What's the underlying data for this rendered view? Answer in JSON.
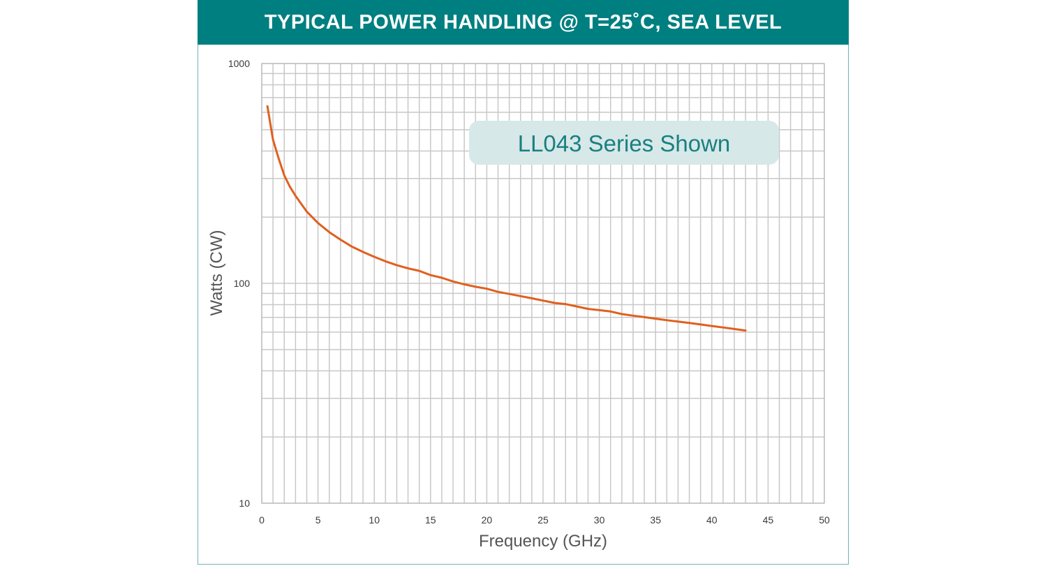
{
  "header": {
    "title": "TYPICAL POWER HANDLING @ T=25˚C, SEA LEVEL"
  },
  "colors": {
    "header_bg": "#007f80",
    "line": "#e0601f",
    "grid": "#c8c8c8",
    "annotation_bg": "#d6e8e8",
    "annotation_text": "#1a7f80"
  },
  "chart_data": {
    "type": "line",
    "title": "TYPICAL POWER HANDLING @ T=25˚C, SEA LEVEL",
    "xlabel": "Frequency (GHz)",
    "ylabel": "Watts (CW)",
    "xlim": [
      0,
      50
    ],
    "ylim": [
      10,
      1000
    ],
    "y_scale": "log",
    "grid": true,
    "x_ticks": [
      "0",
      "5",
      "10",
      "15",
      "20",
      "25",
      "30",
      "35",
      "40",
      "45",
      "50"
    ],
    "y_ticks": [
      "10",
      "100",
      "1000"
    ],
    "annotation": "LL043 Series Shown",
    "series": [
      {
        "x": [
          0.5,
          1,
          1.5,
          2,
          2.5,
          3,
          4,
          5,
          6,
          7,
          8,
          9,
          10,
          11,
          12,
          13,
          14,
          15,
          16,
          17,
          18,
          19,
          20,
          21,
          22,
          23,
          24,
          25,
          26,
          27,
          28,
          29,
          30,
          31,
          32,
          33,
          34,
          35,
          36,
          37,
          38,
          39,
          40,
          41,
          42,
          43
        ],
        "y": [
          640,
          450,
          370,
          310,
          275,
          250,
          212,
          188,
          171,
          158,
          147,
          139,
          132,
          126,
          121,
          117,
          114,
          109,
          106,
          102,
          99,
          96.5,
          94.5,
          91.5,
          89.5,
          87.5,
          85.5,
          83.5,
          81.5,
          80.5,
          78.5,
          76.5,
          75.5,
          74.5,
          72.5,
          71.3,
          70.2,
          69.1,
          68.0,
          67.0,
          66.0,
          65.0,
          64.0,
          63.0,
          62.0,
          61.0
        ]
      }
    ]
  }
}
